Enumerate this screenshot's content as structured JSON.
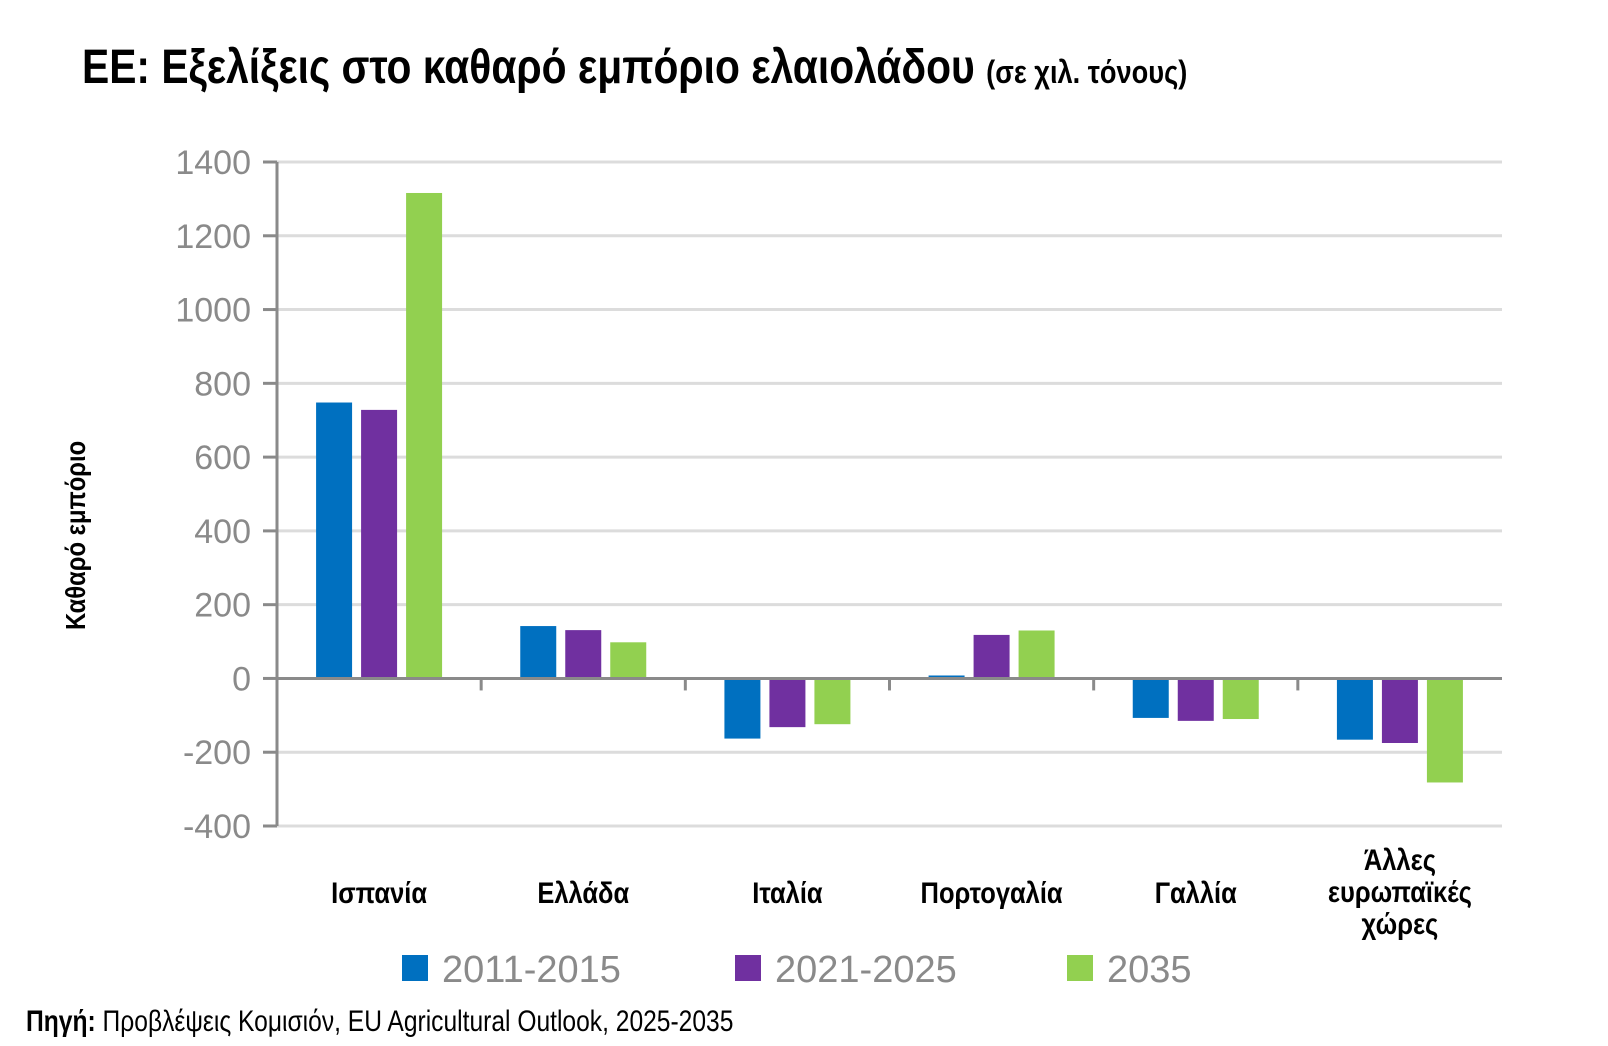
{
  "title": "ΕΕ: Εξελίξεις στο καθαρό εμπόριο ελαιολάδου",
  "title_unit": "(σε χιλ. τόνους)",
  "source_label": "Πηγή:",
  "source_text": "Προβλέψεις Κομισιόν, EU Agricultural Outlook, 2025-2035",
  "chart_data": {
    "type": "bar",
    "title": "ΕΕ: Εξελίξεις στο καθαρό εμπόριο ελαιολάδου (σε χιλ. τόνους)",
    "ylabel": "Καθαρό εμπόριο",
    "xlabel": "",
    "ylim": [
      -400,
      1400
    ],
    "yticks": [
      "1400",
      "1200",
      "1000",
      "800",
      "600",
      "400",
      "200",
      "0",
      "-200",
      "-400"
    ],
    "grid": true,
    "legend_position": "bottom",
    "categories": [
      "Ισπανία",
      "Ελλάδα",
      "Ιταλία",
      "Πορτογαλία",
      "Γαλλία",
      "Άλλες ευρωπαϊκές χώρες"
    ],
    "series": [
      {
        "name": "2011-2015",
        "color": "#0070c0",
        "values": [
          748,
          142,
          -163,
          8,
          -107,
          -166
        ]
      },
      {
        "name": "2021-2025",
        "color": "#7030a0",
        "values": [
          728,
          131,
          -132,
          118,
          -115,
          -175
        ]
      },
      {
        "name": "2035",
        "color": "#92d050",
        "values": [
          1316,
          98,
          -124,
          130,
          -110,
          -282
        ]
      }
    ]
  }
}
